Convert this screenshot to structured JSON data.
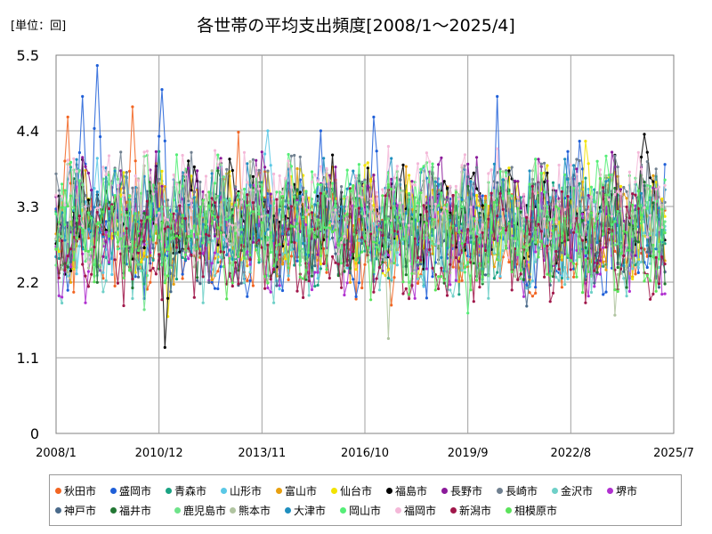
{
  "chart_data": {
    "type": "line",
    "title": "各世帯の平均支出頻度[2008/1～2025/4]",
    "unit_label": "[単位：回]",
    "x_ticks": [
      "2008/1",
      "2010/12",
      "2013/11",
      "2016/10",
      "2019/9",
      "2022/8",
      "2025/7"
    ],
    "y_ticks": [
      "0",
      "1.1",
      "2.2",
      "3.3",
      "4.4",
      "5.5"
    ],
    "ylim": [
      0,
      5.5
    ],
    "x_range": [
      "2008/1",
      "2025/4"
    ],
    "grid": true,
    "legend_position": "bottom",
    "series": [
      {
        "name": "秋田市",
        "color": "#F26522",
        "peaks": [
          [
            4,
            4.6
          ],
          [
            26,
            4.75
          ],
          [
            62,
            4.38
          ],
          [
            220,
            4.55
          ],
          [
            256,
            4.1
          ]
        ]
      },
      {
        "name": "盛岡市",
        "color": "#1F5FD8",
        "peaks": [
          [
            9,
            4.9
          ],
          [
            14,
            5.35
          ],
          [
            36,
            5.0
          ],
          [
            90,
            4.4
          ],
          [
            108,
            4.6
          ],
          [
            150,
            4.9
          ],
          [
            174,
            4.1
          ],
          [
            178,
            4.25
          ],
          [
            208,
            4.9
          ]
        ]
      },
      {
        "name": "青森市",
        "color": "#1AA383",
        "peaks": [
          [
            7,
            3.85
          ],
          [
            35,
            4.1
          ]
        ]
      },
      {
        "name": "山形市",
        "color": "#5AC8E6",
        "peaks": [
          [
            14,
            4.0
          ],
          [
            72,
            4.4
          ]
        ]
      },
      {
        "name": "富山市",
        "color": "#E8A010",
        "peaks": [
          [
            42,
            3.2
          ]
        ]
      },
      {
        "name": "仙台市",
        "color": "#F2E300",
        "peaks": [
          [
            38,
            1.7
          ],
          [
            180,
            4.25
          ],
          [
            239,
            4.25
          ]
        ]
      },
      {
        "name": "福島市",
        "color": "#000000",
        "peaks": [
          [
            37,
            1.25
          ],
          [
            200,
            4.35
          ]
        ]
      },
      {
        "name": "長野市",
        "color": "#8B1A9A",
        "peaks": [
          [
            56,
            4.0
          ]
        ]
      },
      {
        "name": "長崎市",
        "color": "#708090",
        "peaks": [
          [
            130,
            3.3
          ]
        ]
      },
      {
        "name": "金沢市",
        "color": "#6FD0C8",
        "peaks": [
          [
            90,
            3.3
          ]
        ]
      },
      {
        "name": "堺市",
        "color": "#B030D0",
        "peaks": [
          [
            10,
            1.9
          ]
        ]
      },
      {
        "name": "神戸市",
        "color": "#4A6A8A",
        "peaks": [
          [
            160,
            1.85
          ]
        ]
      },
      {
        "name": "福井市",
        "color": "#227733",
        "peaks": [
          [
            50,
            3.4
          ]
        ]
      },
      {
        "name": "鹿児島市",
        "color": "#6EE38A",
        "peaks": [
          [
            30,
            1.8
          ]
        ]
      },
      {
        "name": "熊本市",
        "color": "#B0C4A0",
        "peaks": [
          [
            113,
            1.38
          ],
          [
            190,
            1.72
          ]
        ]
      },
      {
        "name": "大津市",
        "color": "#1F8FBF",
        "peaks": [
          [
            120,
            3.4
          ]
        ]
      },
      {
        "name": "岡山市",
        "color": "#55EE77",
        "peaks": [
          [
            140,
            1.75
          ]
        ]
      },
      {
        "name": "福岡市",
        "color": "#F4B8D8",
        "peaks": [
          [
            100,
            3.3
          ]
        ]
      },
      {
        "name": "新潟市",
        "color": "#A0174A",
        "peaks": [
          [
            80,
            3.3
          ]
        ]
      },
      {
        "name": "相模原市",
        "color": "#5BE35B",
        "peaks": [
          [
            170,
            3.3
          ]
        ]
      }
    ]
  }
}
